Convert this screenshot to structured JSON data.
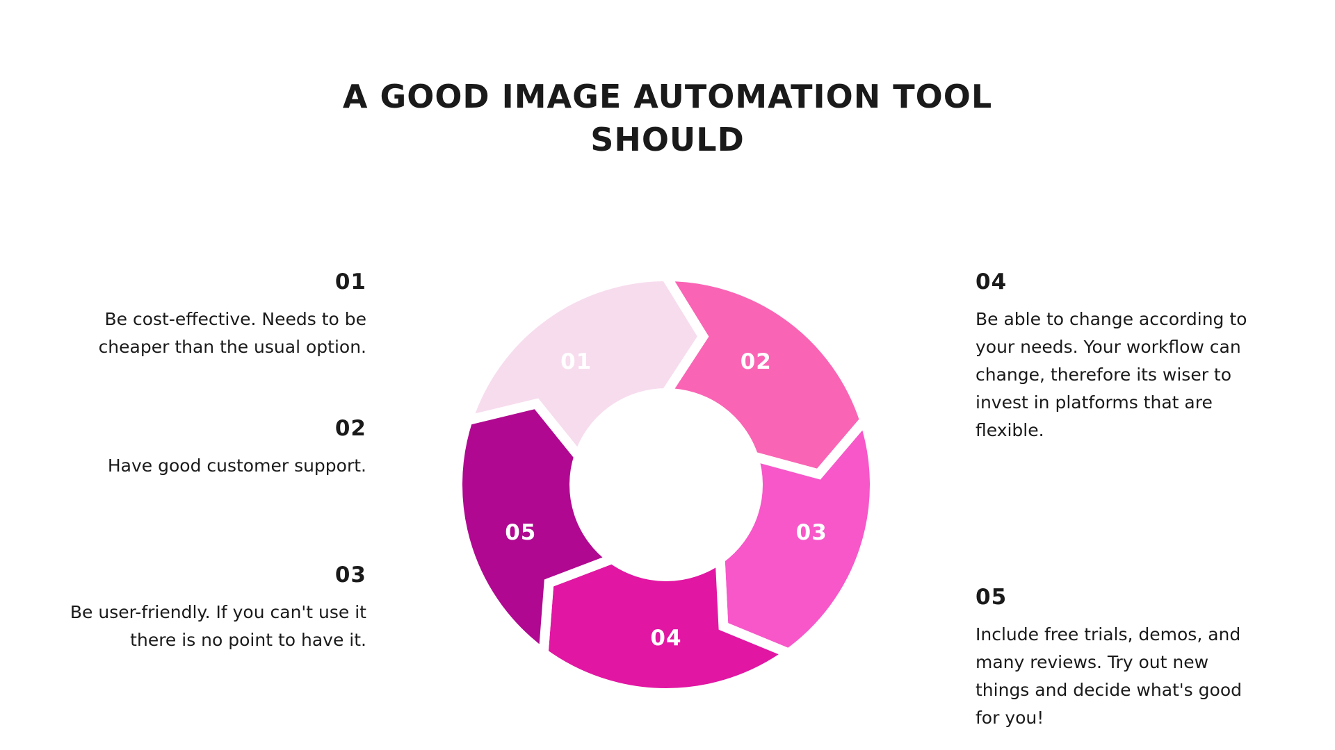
{
  "title_line1": "A GOOD IMAGE AUTOMATION TOOL",
  "title_line2": "SHOULD",
  "left_items": [
    {
      "num": "01",
      "text": "Be cost-effective. Needs to be cheaper than the usual option."
    },
    {
      "num": "02",
      "text": "Have good customer support."
    },
    {
      "num": "03",
      "text": "Be user-friendly. If you can't use it there is no point to have it."
    }
  ],
  "right_items": [
    {
      "num": "04",
      "text": "Be able to change according to your needs. Your workflow can change, therefore its wiser to invest in platforms that are flexible."
    },
    {
      "num": "05",
      "text": "Include free trials, demos, and many reviews. Try out new things and decide what's good for you!"
    }
  ],
  "cycle": [
    {
      "label": "01",
      "color": "#f7dcee"
    },
    {
      "label": "02",
      "color": "#fa64b4"
    },
    {
      "label": "03",
      "color": "#f757c9"
    },
    {
      "label": "04",
      "color": "#e116a2"
    },
    {
      "label": "05",
      "color": "#b00890"
    }
  ]
}
